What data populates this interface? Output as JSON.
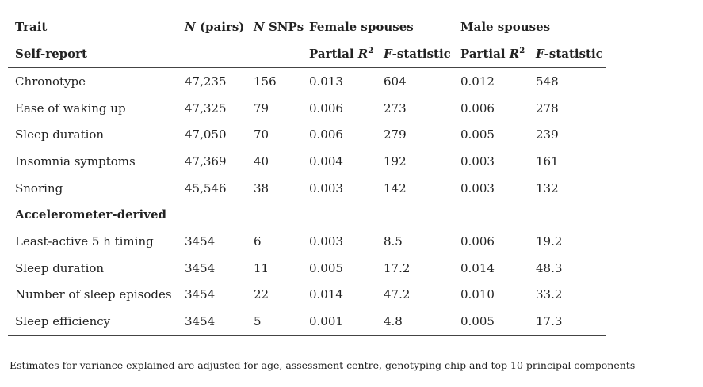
{
  "header": {
    "trait": "Trait",
    "n_pairs": [
      "N",
      " (pairs)"
    ],
    "n_snps": [
      "N",
      " SNPs"
    ],
    "female": "Female spouses",
    "male": "Male spouses"
  },
  "subheader": {
    "female_cols": {
      "partial_r2": [
        "Partial ",
        "R",
        "2"
      ],
      "f_stat": [
        "F",
        "-statistic"
      ]
    },
    "male_cols": {
      "partial_r2": [
        "Partial ",
        "R",
        "2"
      ],
      "f_stat": [
        "F",
        "-statistic"
      ]
    }
  },
  "sections": [
    {
      "title": "Self-report",
      "rows": [
        [
          "Chronotype",
          "47,235",
          "156",
          "0.013",
          "604",
          "0.012",
          "548"
        ],
        [
          "Ease of waking up",
          "47,325",
          "79",
          "0.006",
          "273",
          "0.006",
          "278"
        ],
        [
          "Sleep duration",
          "47,050",
          "70",
          "0.006",
          "279",
          "0.005",
          "239"
        ],
        [
          "Insomnia symptoms",
          "47,369",
          "40",
          "0.004",
          "192",
          "0.003",
          "161"
        ],
        [
          "Snoring",
          "45,546",
          "38",
          "0.003",
          "142",
          "0.003",
          "132"
        ]
      ]
    },
    {
      "title": "Accelerometer-derived",
      "rows": [
        [
          "Least-active 5 h timing",
          "3454",
          "6",
          "0.003",
          "8.5",
          "0.006",
          "19.2"
        ],
        [
          "Sleep duration",
          "3454",
          "11",
          "0.005",
          "17.2",
          "0.014",
          "48.3"
        ],
        [
          "Number of sleep episodes",
          "3454",
          "22",
          "0.014",
          "47.2",
          "0.010",
          "33.2"
        ],
        [
          "Sleep efficiency",
          "3454",
          "5",
          "0.001",
          "4.8",
          "0.005",
          "17.3"
        ]
      ]
    }
  ],
  "footnote": "Estimates for variance explained are adjusted for age, assessment centre, genotyping chip and top 10 principal components"
}
